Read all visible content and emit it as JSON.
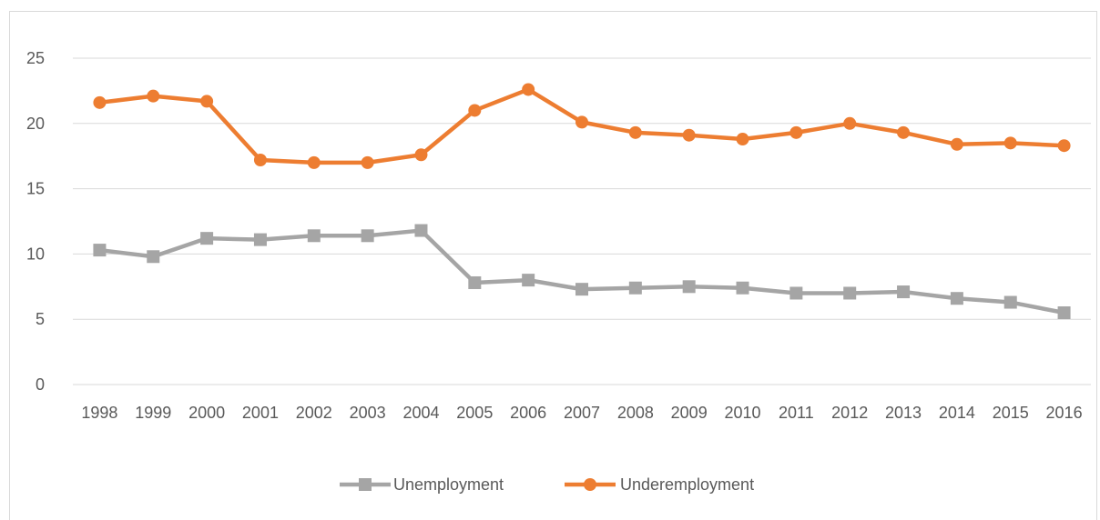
{
  "chart_data": {
    "type": "line",
    "title": "",
    "xlabel": "",
    "ylabel": "",
    "categories": [
      "1998",
      "1999",
      "2000",
      "2001",
      "2002",
      "2003",
      "2004",
      "2005",
      "2006",
      "2007",
      "2008",
      "2009",
      "2010",
      "2011",
      "2012",
      "2013",
      "2014",
      "2015",
      "2016"
    ],
    "ylim": [
      0,
      25
    ],
    "yticks": [
      0,
      5,
      10,
      15,
      20,
      25
    ],
    "grid": true,
    "legend_position": "bottom",
    "series": [
      {
        "name": "Unemployment",
        "color": "#a5a5a5",
        "marker": "square",
        "values": [
          10.3,
          9.8,
          11.2,
          11.1,
          11.4,
          11.4,
          11.8,
          7.8,
          8.0,
          7.3,
          7.4,
          7.5,
          7.4,
          7.0,
          7.0,
          7.1,
          6.6,
          6.3,
          5.5
        ]
      },
      {
        "name": "Underemployment",
        "color": "#ed7d31",
        "marker": "circle",
        "values": [
          21.6,
          22.1,
          21.7,
          17.2,
          17.0,
          17.0,
          17.6,
          21.0,
          22.6,
          20.1,
          19.3,
          19.1,
          18.8,
          19.3,
          20.0,
          19.3,
          18.4,
          18.5,
          18.3
        ]
      }
    ]
  }
}
